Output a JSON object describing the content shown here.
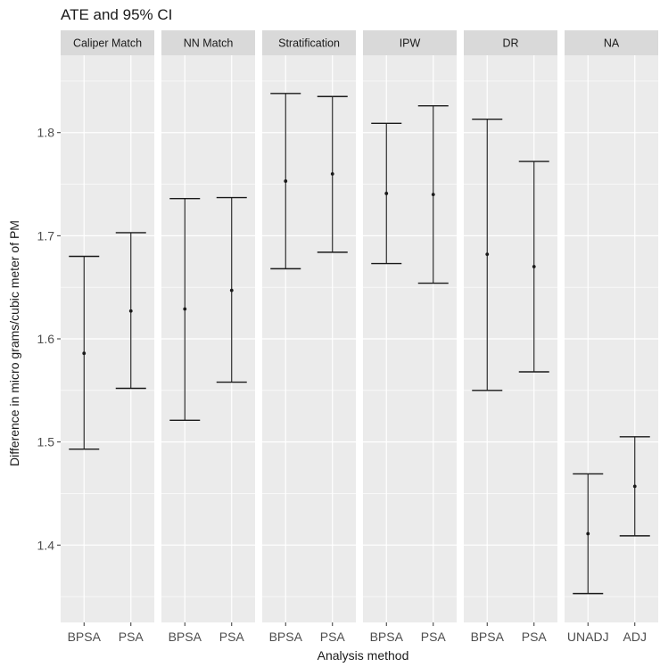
{
  "chart_data": {
    "type": "errorbar",
    "title": "ATE and 95% CI",
    "xlabel": "Analysis method",
    "ylabel": "Difference in micro grams/cubic meter of PM",
    "ylim": [
      1.325,
      1.875
    ],
    "yticks": [
      1.4,
      1.5,
      1.6,
      1.7,
      1.8
    ],
    "ytick_labels": [
      "1.4",
      "1.5",
      "1.6",
      "1.7",
      "1.8"
    ],
    "grid": true,
    "colors": {
      "panel_bg": "#ebebeb",
      "strip_bg": "#d9d9d9",
      "grid": "#ffffff",
      "ink": "#1a1a1a"
    },
    "facets": [
      {
        "label": "Caliper Match",
        "points": [
          {
            "x": "BPSA",
            "est": 1.586,
            "lo": 1.493,
            "hi": 1.68
          },
          {
            "x": "PSA",
            "est": 1.627,
            "lo": 1.552,
            "hi": 1.703
          }
        ]
      },
      {
        "label": "NN Match",
        "points": [
          {
            "x": "BPSA",
            "est": 1.629,
            "lo": 1.521,
            "hi": 1.736
          },
          {
            "x": "PSA",
            "est": 1.647,
            "lo": 1.558,
            "hi": 1.737
          }
        ]
      },
      {
        "label": "Stratification",
        "points": [
          {
            "x": "BPSA",
            "est": 1.753,
            "lo": 1.668,
            "hi": 1.838
          },
          {
            "x": "PSA",
            "est": 1.76,
            "lo": 1.684,
            "hi": 1.835
          }
        ]
      },
      {
        "label": "IPW",
        "points": [
          {
            "x": "BPSA",
            "est": 1.741,
            "lo": 1.673,
            "hi": 1.809
          },
          {
            "x": "PSA",
            "est": 1.74,
            "lo": 1.654,
            "hi": 1.826
          }
        ]
      },
      {
        "label": "DR",
        "points": [
          {
            "x": "BPSA",
            "est": 1.682,
            "lo": 1.55,
            "hi": 1.813
          },
          {
            "x": "PSA",
            "est": 1.67,
            "lo": 1.568,
            "hi": 1.772
          }
        ]
      },
      {
        "label": "NA",
        "points": [
          {
            "x": "UNADJ",
            "est": 1.411,
            "lo": 1.353,
            "hi": 1.469
          },
          {
            "x": "ADJ",
            "est": 1.457,
            "lo": 1.409,
            "hi": 1.505
          }
        ]
      }
    ]
  }
}
